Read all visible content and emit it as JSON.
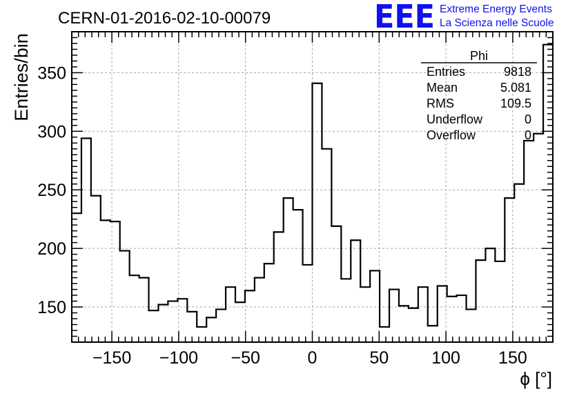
{
  "header": {
    "run_title": "CERN-01-2016-02-10-00079",
    "logo": {
      "mark": "EEE",
      "line1": "Extreme Energy Events",
      "line2": "La Scienza nelle Scuole",
      "color": "#1010ee"
    }
  },
  "stats_box": {
    "title": "Phi",
    "rows": [
      {
        "label": "Entries",
        "value": "9818"
      },
      {
        "label": "Mean",
        "value": "5.081"
      },
      {
        "label": "RMS",
        "value": "109.5"
      },
      {
        "label": "Underflow",
        "value": "0"
      },
      {
        "label": "Overflow",
        "value": "0"
      }
    ]
  },
  "chart_data": {
    "type": "bar",
    "style": "step-histogram",
    "xlabel": "ϕ [°]",
    "ylabel": "Entries/bin",
    "xlim": [
      -180,
      180
    ],
    "ylim": [
      120,
      385
    ],
    "bin_width": 7.2,
    "xticks": [
      -150,
      -100,
      -50,
      0,
      50,
      100,
      150
    ],
    "xtick_labels": [
      "−150",
      "−100",
      "−50",
      "0",
      "50",
      "100",
      "150"
    ],
    "yticks": [
      150,
      200,
      250,
      300,
      350
    ],
    "ytick_labels": [
      "150",
      "200",
      "250",
      "300",
      "350"
    ],
    "grid": true,
    "line_color": "#000000",
    "values": [
      230,
      294,
      245,
      224,
      223,
      198,
      177,
      175,
      147,
      152,
      155,
      157,
      146,
      133,
      141,
      148,
      167,
      154,
      164,
      175,
      187,
      214,
      243,
      233,
      186,
      341,
      285,
      219,
      174,
      207,
      167,
      181,
      133,
      165,
      151,
      149,
      167,
      134,
      168,
      159,
      160,
      148,
      190,
      200,
      189,
      243,
      255,
      292,
      298,
      374
    ]
  }
}
